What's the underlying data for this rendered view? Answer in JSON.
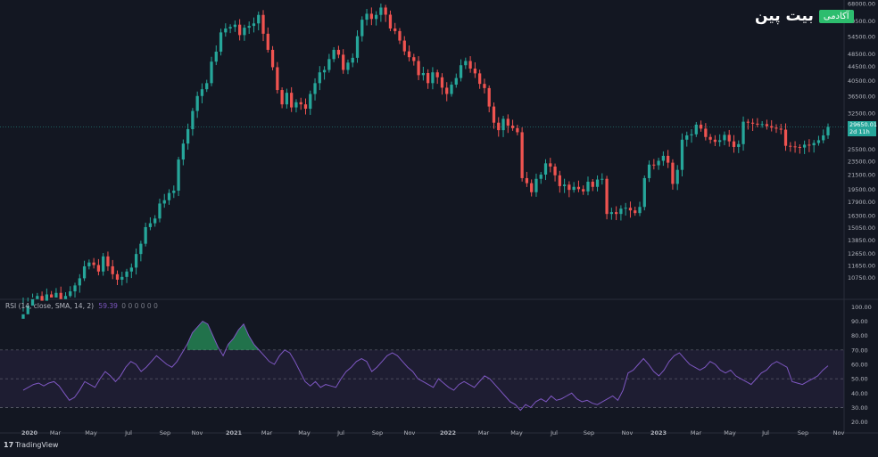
{
  "watermark": {
    "brand": "بیت پین",
    "badge": "آکادمی"
  },
  "rsi_legend": {
    "label": "RSI (14, close, SMA, 14, 2)",
    "value": "59.39",
    "extra": "0 0 0 0 0 0"
  },
  "branding": {
    "logo_mark": "17",
    "logo_text": "TradingView"
  },
  "last_price": {
    "price": "29650.01",
    "countdown": "2d 11h"
  },
  "colors": {
    "up": "#26a69a",
    "down": "#ef5350",
    "rsi_line": "#7e57c2",
    "background": "#131722",
    "grid": "#1e2230"
  },
  "chart_data": [
    {
      "type": "candlestick",
      "scale": "log",
      "interval": "weekly",
      "price_ticks": [
        "68000.00",
        "60500.00",
        "54500.00",
        "48500.00",
        "44500.00",
        "40500.00",
        "36500.00",
        "32500.00",
        "28500.00",
        "25500.00",
        "23500.00",
        "21500.00",
        "19500.00",
        "17900.00",
        "16300.00",
        "15050.00",
        "13850.00",
        "12650.00",
        "11650.00",
        "10750.00"
      ],
      "x_ticks": [
        "2020",
        "Mar",
        "May",
        "Jul",
        "Sep",
        "Nov",
        "2021",
        "Mar",
        "May",
        "Jul",
        "Sep",
        "Nov",
        "2022",
        "Mar",
        "May",
        "Jul",
        "Sep",
        "Nov",
        "2023",
        "Mar",
        "May",
        "Jul",
        "Sep",
        "Nov"
      ],
      "closes": [
        8400,
        8900,
        9300,
        9500,
        9200,
        9600,
        9400,
        9700,
        9300,
        9500,
        9800,
        10200,
        10700,
        11600,
        11900,
        11700,
        11200,
        12400,
        11600,
        11000,
        10600,
        10800,
        11200,
        11500,
        12600,
        13500,
        15100,
        15500,
        16000,
        17700,
        18100,
        19000,
        19300,
        23800,
        26500,
        29200,
        33000,
        36500,
        38200,
        39800,
        46000,
        49200,
        56000,
        57500,
        58100,
        59000,
        55000,
        57800,
        58500,
        59500,
        63000,
        55500,
        49800,
        44300,
        38000,
        34500,
        37300,
        33800,
        35000,
        34500,
        33500,
        37000,
        39800,
        42800,
        43500,
        46800,
        49800,
        48200,
        43500,
        45700,
        47200,
        54600,
        61000,
        63500,
        61300,
        63000,
        66200,
        63100,
        57500,
        56500,
        53000,
        49300,
        47400,
        46200,
        42000,
        42600,
        39800,
        42800,
        41400,
        38600,
        37000,
        39400,
        41200,
        44900,
        46200,
        43900,
        42500,
        39600,
        38500,
        34000,
        30500,
        29000,
        31300,
        29900,
        29400,
        28600,
        21000,
        20300,
        19100,
        20900,
        21500,
        23200,
        22700,
        21400,
        19900,
        20100,
        19400,
        19800,
        19500,
        19200,
        20500,
        19800,
        20800,
        20900,
        16500,
        16700,
        16500,
        17100,
        17200,
        16900,
        16600,
        17300,
        21000,
        23000,
        22900,
        23600,
        24400,
        23300,
        20200,
        22200,
        27200,
        28000,
        28200,
        30100,
        29300,
        27700,
        27200,
        26800,
        27100,
        28100,
        26900,
        25900,
        26400,
        30700,
        30500,
        30300,
        30100,
        30200,
        29800,
        29500,
        29300,
        29100,
        26100,
        26000,
        25900,
        25800,
        26300,
        26200,
        26600,
        27100,
        28000,
        29650
      ]
    },
    {
      "type": "line",
      "name": "RSI (14, close, SMA, 14, 2)",
      "y_ticks": [
        100,
        90,
        80,
        70,
        60,
        50,
        40,
        30,
        20
      ],
      "bands": [
        30,
        50,
        70
      ],
      "ylim": [
        16,
        104
      ],
      "values": [
        42,
        44,
        46,
        47,
        45,
        47,
        48,
        45,
        40,
        35,
        37,
        42,
        48,
        46,
        44,
        50,
        55,
        52,
        48,
        52,
        58,
        62,
        60,
        55,
        58,
        62,
        66,
        63,
        60,
        58,
        62,
        68,
        74,
        82,
        86,
        90,
        88,
        80,
        72,
        66,
        74,
        78,
        84,
        88,
        80,
        74,
        70,
        66,
        62,
        60,
        66,
        70,
        68,
        62,
        55,
        48,
        45,
        48,
        44,
        46,
        45,
        44,
        50,
        55,
        58,
        62,
        64,
        62,
        55,
        58,
        62,
        66,
        68,
        66,
        62,
        58,
        55,
        50,
        48,
        46,
        44,
        50,
        47,
        44,
        42,
        46,
        48,
        46,
        44,
        48,
        52,
        50,
        46,
        42,
        38,
        34,
        32,
        28,
        32,
        30,
        34,
        36,
        34,
        38,
        35,
        36,
        38,
        40,
        36,
        34,
        35,
        33,
        32,
        34,
        36,
        38,
        35,
        42,
        54,
        56,
        60,
        64,
        60,
        55,
        52,
        56,
        62,
        66,
        68,
        64,
        60,
        58,
        56,
        58,
        62,
        60,
        56,
        54,
        56,
        52,
        50,
        48,
        46,
        50,
        54,
        56,
        60,
        62,
        60,
        58,
        48,
        47,
        46,
        48,
        50,
        52,
        56,
        59
      ]
    }
  ]
}
